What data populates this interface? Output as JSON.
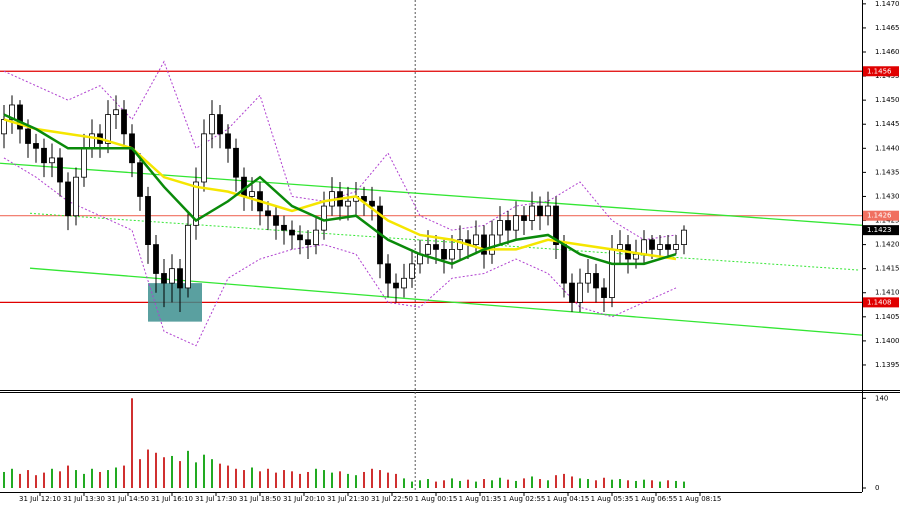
{
  "chart_data": {
    "type": "candlestick",
    "xlim": [
      -0.5,
      107.25
    ],
    "ylim": [
      1.13898,
      1.14708
    ],
    "yticks": [
      {
        "value": 1.1395,
        "label": "1.1395"
      },
      {
        "value": 1.14,
        "label": "1.1400"
      },
      {
        "value": 1.1405,
        "label": "1.1405"
      },
      {
        "value": 1.141,
        "label": "1.1410"
      },
      {
        "value": 1.1415,
        "label": "1.1415"
      },
      {
        "value": 1.142,
        "label": "1.1420"
      },
      {
        "value": 1.1425,
        "label": "1.1425"
      },
      {
        "value": 1.143,
        "label": "1.1430"
      },
      {
        "value": 1.1435,
        "label": "1.1435"
      },
      {
        "value": 1.144,
        "label": "1.1440"
      },
      {
        "value": 1.1445,
        "label": "1.1445"
      },
      {
        "value": 1.145,
        "label": "1.1450"
      },
      {
        "value": 1.1455,
        "label": "1.1455"
      },
      {
        "value": 1.146,
        "label": "1.1460"
      },
      {
        "value": 1.1465,
        "label": "1.1465"
      },
      {
        "value": 1.147,
        "label": "1.1470"
      }
    ],
    "xticks": [
      {
        "value": 4.5,
        "label": "31 Jul 12:10"
      },
      {
        "value": 10,
        "label": "31 Jul 13:30"
      },
      {
        "value": 15.5,
        "label": "31 Jul 14:50"
      },
      {
        "value": 21,
        "label": "31 Jul 16:10"
      },
      {
        "value": 26.5,
        "label": "31 Jul 17:30"
      },
      {
        "value": 32,
        "label": "31 Jul 18:50"
      },
      {
        "value": 37.5,
        "label": "31 Jul 20:10"
      },
      {
        "value": 43,
        "label": "31 Jul 21:30"
      },
      {
        "value": 48.5,
        "label": "31 Jul 22:50"
      },
      {
        "value": 54,
        "label": "1 Aug 00:15"
      },
      {
        "value": 59.5,
        "label": "1 Aug 01:35"
      },
      {
        "value": 65,
        "label": "1 Aug 02:55"
      },
      {
        "value": 70.5,
        "label": "1 Aug 04:15"
      },
      {
        "value": 76,
        "label": "1 Aug 05:35"
      },
      {
        "value": 81.5,
        "label": "1 Aug 06:55"
      },
      {
        "value": 87,
        "label": "1 Aug 08:15"
      }
    ],
    "open": [
      1.1443,
      1.1446,
      1.1449,
      1.1444,
      1.1441,
      1.144,
      1.1437,
      1.1438,
      1.1433,
      1.1426,
      1.1434,
      1.144,
      1.1443,
      1.1441,
      1.1447,
      1.1448,
      1.1443,
      1.1437,
      1.143,
      1.142,
      1.1414,
      1.1412,
      1.1415,
      1.1411,
      1.1424,
      1.1433,
      1.1443,
      1.1447,
      1.1443,
      1.144,
      1.1434,
      1.143,
      1.1431,
      1.1427,
      1.1426,
      1.1424,
      1.1423,
      1.1422,
      1.1421,
      1.142,
      1.1423,
      1.1428,
      1.1431,
      1.1428,
      1.1429,
      1.143,
      1.1429,
      1.1428,
      1.1416,
      1.1412,
      1.1411,
      1.1413,
      1.1416,
      1.1418,
      1.142,
      1.1419,
      1.1417,
      1.1419,
      1.1421,
      1.142,
      1.1422,
      1.1418,
      1.1422,
      1.1425,
      1.1423,
      1.1426,
      1.1425,
      1.1428,
      1.1426,
      1.1428,
      1.142,
      1.1412,
      1.1408,
      1.1412,
      1.1414,
      1.1411,
      1.1409,
      1.1419,
      1.142,
      1.1417,
      1.1418,
      1.1421,
      1.1419,
      1.142,
      1.1419,
      1.142
    ],
    "high": [
      1.1449,
      1.1451,
      1.145,
      1.1446,
      1.1443,
      1.1442,
      1.1441,
      1.144,
      1.1435,
      1.1436,
      1.1443,
      1.1446,
      1.1445,
      1.145,
      1.1451,
      1.145,
      1.1445,
      1.1439,
      1.1432,
      1.1422,
      1.1417,
      1.1418,
      1.1417,
      1.1427,
      1.1436,
      1.1446,
      1.145,
      1.1449,
      1.1445,
      1.1442,
      1.1436,
      1.1434,
      1.1433,
      1.1429,
      1.1428,
      1.1426,
      1.1425,
      1.1424,
      1.1423,
      1.1426,
      1.1431,
      1.1434,
      1.1433,
      1.1432,
      1.1433,
      1.1432,
      1.1432,
      1.143,
      1.1418,
      1.1414,
      1.1416,
      1.1419,
      1.1421,
      1.1423,
      1.1422,
      1.1421,
      1.1422,
      1.1424,
      1.1423,
      1.1425,
      1.1424,
      1.1425,
      1.1428,
      1.1427,
      1.1429,
      1.1428,
      1.1431,
      1.143,
      1.1431,
      1.143,
      1.1422,
      1.1414,
      1.1415,
      1.1417,
      1.1416,
      1.1413,
      1.1422,
      1.1423,
      1.1422,
      1.1421,
      1.1423,
      1.1422,
      1.1422,
      1.1422,
      1.1422,
      1.1424
    ],
    "low": [
      1.144,
      1.1443,
      1.1441,
      1.1438,
      1.1437,
      1.1434,
      1.1434,
      1.143,
      1.1423,
      1.1424,
      1.1432,
      1.1438,
      1.1438,
      1.1439,
      1.1444,
      1.144,
      1.1434,
      1.1427,
      1.1416,
      1.141,
      1.1407,
      1.1408,
      1.1406,
      1.1409,
      1.1421,
      1.1431,
      1.144,
      1.144,
      1.1437,
      1.1431,
      1.1427,
      1.1427,
      1.1424,
      1.1423,
      1.1421,
      1.142,
      1.1419,
      1.1418,
      1.1417,
      1.1418,
      1.1421,
      1.1426,
      1.1425,
      1.1425,
      1.1426,
      1.1426,
      1.1425,
      1.1413,
      1.1409,
      1.1408,
      1.1409,
      1.1411,
      1.1414,
      1.1416,
      1.1416,
      1.1414,
      1.1415,
      1.1417,
      1.1417,
      1.1418,
      1.1415,
      1.1416,
      1.142,
      1.142,
      1.1421,
      1.1422,
      1.1423,
      1.1423,
      1.1424,
      1.1417,
      1.1409,
      1.1406,
      1.1406,
      1.141,
      1.1408,
      1.1406,
      1.1407,
      1.1416,
      1.1414,
      1.1415,
      1.1416,
      1.1417,
      1.1417,
      1.1417,
      1.1418,
      1.1418
    ],
    "close": [
      1.1446,
      1.1449,
      1.1444,
      1.1441,
      1.144,
      1.1437,
      1.1438,
      1.1433,
      1.1426,
      1.1434,
      1.144,
      1.1443,
      1.1441,
      1.1447,
      1.1448,
      1.1443,
      1.1437,
      1.143,
      1.142,
      1.1414,
      1.1412,
      1.1415,
      1.1411,
      1.1424,
      1.1433,
      1.1443,
      1.1447,
      1.1443,
      1.144,
      1.1434,
      1.143,
      1.1431,
      1.1427,
      1.1426,
      1.1424,
      1.1423,
      1.1422,
      1.1421,
      1.142,
      1.1423,
      1.1428,
      1.1431,
      1.1428,
      1.1429,
      1.143,
      1.1429,
      1.1428,
      1.1416,
      1.1412,
      1.1411,
      1.1413,
      1.1416,
      1.1418,
      1.142,
      1.1419,
      1.1417,
      1.1419,
      1.1421,
      1.142,
      1.1422,
      1.1418,
      1.1422,
      1.1425,
      1.1423,
      1.1426,
      1.1425,
      1.1428,
      1.1426,
      1.1428,
      1.142,
      1.1412,
      1.1408,
      1.1412,
      1.1414,
      1.1411,
      1.1409,
      1.1419,
      1.142,
      1.1417,
      1.1418,
      1.1421,
      1.1419,
      1.142,
      1.1419,
      1.142,
      1.1423
    ],
    "indicators": [
      {
        "color": "#b040d0",
        "style": "dotted",
        "x": [
          0,
          4,
          8,
          12,
          16,
          20,
          24,
          28,
          32,
          36,
          40,
          44,
          48,
          52,
          56,
          60,
          64,
          68,
          72,
          76,
          80,
          84
        ],
        "values": [
          1.1456,
          1.1453,
          1.145,
          1.1453,
          1.1446,
          1.1458,
          1.144,
          1.1444,
          1.1451,
          1.143,
          1.1429,
          1.1431,
          1.1439,
          1.1426,
          1.1423,
          1.1424,
          1.1428,
          1.1429,
          1.1433,
          1.1425,
          1.1421,
          1.1422
        ]
      },
      {
        "color": "#b040d0",
        "style": "dotted",
        "x": [
          0,
          4,
          8,
          12,
          16,
          20,
          24,
          28,
          32,
          36,
          40,
          44,
          48,
          52,
          56,
          60,
          64,
          68,
          72,
          76,
          80,
          84
        ],
        "values": [
          1.1438,
          1.1434,
          1.1429,
          1.1426,
          1.1423,
          1.1402,
          1.1399,
          1.1413,
          1.1417,
          1.1419,
          1.142,
          1.1418,
          1.1408,
          1.1407,
          1.1413,
          1.1414,
          1.1417,
          1.1414,
          1.1407,
          1.1405,
          1.1408,
          1.1411
        ]
      },
      {
        "color": "#f5e600",
        "style": "thick",
        "x": [
          0,
          4,
          8,
          12,
          16,
          20,
          24,
          28,
          32,
          36,
          40,
          44,
          48,
          52,
          56,
          60,
          64,
          68,
          72,
          76,
          80,
          84
        ],
        "values": [
          1.1446,
          1.1444,
          1.1443,
          1.1442,
          1.144,
          1.1434,
          1.1432,
          1.1431,
          1.1429,
          1.1427,
          1.1429,
          1.143,
          1.1425,
          1.1422,
          1.1421,
          1.1419,
          1.1419,
          1.1421,
          1.142,
          1.1419,
          1.1418,
          1.1417
        ]
      },
      {
        "color": "#0a8a0a",
        "style": "thick",
        "x": [
          0,
          4,
          8,
          12,
          16,
          20,
          24,
          28,
          32,
          36,
          40,
          44,
          48,
          52,
          56,
          60,
          64,
          68,
          72,
          76,
          80,
          84
        ],
        "values": [
          1.1447,
          1.1444,
          1.144,
          1.144,
          1.144,
          1.1432,
          1.1425,
          1.1429,
          1.1434,
          1.1428,
          1.1425,
          1.1426,
          1.1421,
          1.1418,
          1.1416,
          1.1419,
          1.1421,
          1.1422,
          1.1418,
          1.1416,
          1.1416,
          1.1418
        ]
      }
    ],
    "trendlines": [
      {
        "color": "#33e633",
        "style": "solid",
        "x": [
          -0.5,
          107.25
        ],
        "values": [
          1.14369,
          1.1424
        ]
      },
      {
        "color": "#33e633",
        "style": "solid",
        "x": [
          3.25,
          107.25
        ],
        "values": [
          1.14151,
          1.14012
        ]
      },
      {
        "color": "#33e633",
        "style": "dotted",
        "x": [
          3.25,
          107
        ],
        "values": [
          1.14265,
          1.14147
        ]
      }
    ],
    "hlines": [
      {
        "value": 1.1456,
        "label": "1.1456",
        "color": "#e00000"
      },
      {
        "value": 1.1426,
        "label": "1.1426",
        "color": "#f07060"
      },
      {
        "value": 1.1408,
        "label": "1.1408",
        "color": "#e00000"
      }
    ],
    "current_price": {
      "value": 1.1423,
      "label": "1.1423",
      "color": "#000000"
    },
    "highlight_box": {
      "x": [
        18,
        24.75
      ],
      "y": [
        1.1412,
        1.1404
      ],
      "color": "#3d8f8f"
    },
    "separator_x": 51.4,
    "volume": {
      "ylim": [
        0,
        142
      ],
      "yticks": [
        0,
        140
      ],
      "up_color": "#22aa22",
      "down_color": "#d03030",
      "values": [
        25,
        30,
        22,
        28,
        20,
        24,
        30,
        26,
        35,
        28,
        22,
        30,
        25,
        28,
        32,
        35,
        140,
        45,
        60,
        55,
        48,
        50,
        42,
        58,
        40,
        52,
        45,
        38,
        35,
        30,
        28,
        32,
        26,
        30,
        24,
        28,
        26,
        22,
        25,
        30,
        28,
        24,
        26,
        22,
        20,
        25,
        30,
        28,
        24,
        22,
        15,
        10,
        12,
        14,
        10,
        12,
        15,
        11,
        13,
        10,
        14,
        12,
        16,
        13,
        11,
        15,
        18,
        14,
        12,
        20,
        22,
        18,
        15,
        14,
        12,
        16,
        13,
        14,
        12,
        11,
        13,
        12,
        10,
        12,
        11,
        10
      ]
    }
  }
}
